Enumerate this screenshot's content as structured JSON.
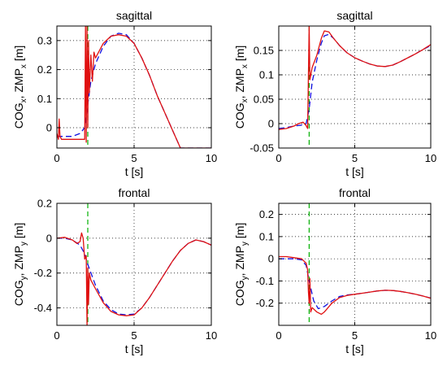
{
  "chart_data": [
    {
      "type": "line",
      "title": "sagittal",
      "xlabel": "t [s]",
      "ylabel": {
        "a": "COG",
        "a_sub": "x",
        "sep": ", ",
        "b": "ZMP",
        "b_sub": "x",
        "unit": " [m]"
      },
      "xlim": [
        0,
        10
      ],
      "ylim": [
        -0.07,
        0.35
      ],
      "xticks": [
        0,
        5,
        10
      ],
      "yticks": [
        0,
        0.1,
        0.2,
        0.3
      ],
      "ytick_labels": [
        "0",
        "0.1",
        "0.2",
        "0.3"
      ],
      "grid": true,
      "vline": {
        "x": 2.0,
        "color": "#00b000"
      },
      "series": [
        {
          "style": "dashed",
          "color": "#1010e0",
          "x": [
            0,
            0.5,
            1.0,
            1.5,
            1.8,
            2.0,
            2.2,
            2.5,
            3.0,
            3.5,
            4.0,
            4.5,
            5.0,
            5.5,
            6.0,
            6.5,
            7.0,
            7.5,
            8.0,
            10
          ],
          "y": [
            -0.03,
            -0.03,
            -0.03,
            -0.02,
            0.0,
            0.08,
            0.16,
            0.22,
            0.28,
            0.315,
            0.325,
            0.32,
            0.29,
            0.24,
            0.18,
            0.11,
            0.05,
            -0.01,
            -0.07,
            -0.07
          ]
        },
        {
          "style": "solid",
          "color": "#e01010",
          "x": [
            0,
            0.1,
            0.15,
            0.2,
            0.3,
            0.5,
            1.0,
            1.5,
            1.8,
            1.85,
            1.9,
            1.95,
            2.0,
            2.05,
            2.1,
            2.2,
            2.3,
            2.4,
            2.5,
            3.0,
            3.5,
            4.0,
            4.5,
            5.0,
            5.5,
            6.0,
            6.5,
            7.0,
            7.5,
            8.0,
            10
          ],
          "y": [
            -0.02,
            -0.04,
            0.03,
            -0.03,
            -0.04,
            -0.04,
            -0.04,
            -0.04,
            -0.04,
            0.35,
            -0.05,
            0.35,
            0.0,
            0.3,
            0.12,
            0.25,
            0.16,
            0.26,
            0.24,
            0.29,
            0.315,
            0.32,
            0.315,
            0.29,
            0.24,
            0.18,
            0.11,
            0.05,
            -0.01,
            -0.07,
            -0.07
          ]
        }
      ]
    },
    {
      "type": "line",
      "title": "sagittal",
      "xlabel": "t [s]",
      "ylabel": {
        "a": "COG",
        "a_sub": "x",
        "sep": ", ",
        "b": "ZMP",
        "b_sub": "x",
        "unit": " [m]"
      },
      "xlim": [
        0,
        10
      ],
      "ylim": [
        -0.05,
        0.2
      ],
      "xticks": [
        0,
        5,
        10
      ],
      "yticks": [
        -0.05,
        0,
        0.05,
        0.1,
        0.15
      ],
      "ytick_labels": [
        "-0.05",
        "0",
        "0.05",
        "0.1",
        "0.15"
      ],
      "grid": true,
      "vline": {
        "x": 2.0,
        "color": "#00b000"
      },
      "series": [
        {
          "style": "dashed",
          "color": "#1010e0",
          "x": [
            0,
            0.5,
            1.0,
            1.5,
            1.8,
            2.0,
            2.2,
            2.5,
            2.8,
            3.0,
            3.3,
            3.6,
            4.0,
            4.5,
            5.0,
            5.5,
            6.0,
            6.5,
            7.0,
            7.5,
            8.0,
            8.5,
            9.0,
            9.5,
            10
          ],
          "y": [
            -0.01,
            -0.008,
            -0.005,
            -0.003,
            0.0,
            0.03,
            0.085,
            0.13,
            0.165,
            0.18,
            0.183,
            0.175,
            0.16,
            0.145,
            0.135,
            0.128,
            0.122,
            0.118,
            0.117,
            0.12,
            0.127,
            0.135,
            0.143,
            0.152,
            0.16
          ]
        },
        {
          "style": "solid",
          "color": "#e01010",
          "x": [
            0,
            0.5,
            1.0,
            1.3,
            1.6,
            1.8,
            1.9,
            2.0,
            2.05,
            2.2,
            2.5,
            2.8,
            3.0,
            3.3,
            3.6,
            4.0,
            4.5,
            5.0,
            5.5,
            6.0,
            6.5,
            7.0,
            7.5,
            8.0,
            8.5,
            9.0,
            9.5,
            10
          ],
          "y": [
            -0.012,
            -0.01,
            -0.005,
            0.0,
            0.003,
            -0.004,
            -0.01,
            0.2,
            0.09,
            0.115,
            0.14,
            0.175,
            0.19,
            0.188,
            0.175,
            0.16,
            0.145,
            0.135,
            0.128,
            0.122,
            0.118,
            0.117,
            0.12,
            0.127,
            0.135,
            0.143,
            0.152,
            0.162
          ]
        }
      ]
    },
    {
      "type": "line",
      "title": "frontal",
      "xlabel": "t [s]",
      "ylabel": {
        "a": "COG",
        "a_sub": "y",
        "sep": ", ",
        "b": "ZMP",
        "b_sub": "y",
        "unit": " [m]"
      },
      "xlim": [
        0,
        10
      ],
      "ylim": [
        -0.5,
        0.2
      ],
      "xticks": [
        0,
        5,
        10
      ],
      "yticks": [
        -0.4,
        -0.2,
        0,
        0.2
      ],
      "ytick_labels": [
        "-0.4",
        "-0.2",
        "0",
        "0.2"
      ],
      "grid": true,
      "vline": {
        "x": 2.0,
        "color": "#00b000"
      },
      "series": [
        {
          "style": "dashed",
          "color": "#1010e0",
          "x": [
            0,
            0.5,
            1.0,
            1.5,
            1.8,
            2.0,
            2.5,
            3.0,
            3.5,
            4.0,
            4.5,
            5.0,
            5.5,
            6.0,
            6.5,
            7.0,
            7.5,
            8.0,
            8.5,
            9.0,
            9.5,
            10
          ],
          "y": [
            0.0,
            0.0,
            -0.01,
            -0.04,
            -0.09,
            -0.15,
            -0.27,
            -0.36,
            -0.41,
            -0.435,
            -0.44,
            -0.435,
            -0.4,
            -0.34,
            -0.27,
            -0.2,
            -0.13,
            -0.07,
            -0.03,
            -0.01,
            -0.02,
            -0.04
          ]
        },
        {
          "style": "solid",
          "color": "#e01010",
          "x": [
            0,
            0.5,
            1.0,
            1.3,
            1.5,
            1.6,
            1.7,
            1.8,
            1.9,
            1.95,
            2.0,
            2.05,
            2.1,
            2.2,
            2.5,
            3.0,
            3.5,
            4.0,
            4.5,
            5.0,
            5.5,
            6.0,
            6.5,
            7.0,
            7.5,
            8.0,
            8.5,
            9.0,
            9.5,
            10
          ],
          "y": [
            0.0,
            0.005,
            -0.01,
            -0.03,
            -0.02,
            0.03,
            0.0,
            -0.12,
            -0.1,
            -0.5,
            -0.17,
            -0.38,
            -0.2,
            -0.24,
            -0.29,
            -0.37,
            -0.42,
            -0.44,
            -0.445,
            -0.44,
            -0.4,
            -0.34,
            -0.27,
            -0.2,
            -0.13,
            -0.07,
            -0.03,
            -0.01,
            -0.02,
            -0.04
          ]
        }
      ]
    },
    {
      "type": "line",
      "title": "frontal",
      "xlabel": "t [s]",
      "ylabel": {
        "a": "COG",
        "a_sub": "y",
        "sep": ", ",
        "b": "ZMP",
        "b_sub": "y",
        "unit": " [m]"
      },
      "xlim": [
        0,
        10
      ],
      "ylim": [
        -0.3,
        0.25
      ],
      "xticks": [
        0,
        5,
        10
      ],
      "yticks": [
        -0.2,
        -0.1,
        0,
        0.1,
        0.2
      ],
      "ytick_labels": [
        "-0.2",
        "-0.1",
        "0",
        "0.1",
        "0.2"
      ],
      "grid": true,
      "vline": {
        "x": 2.0,
        "color": "#00b000"
      },
      "series": [
        {
          "style": "dashed",
          "color": "#1010e0",
          "x": [
            0,
            0.5,
            1.0,
            1.5,
            1.8,
            2.0,
            2.3,
            2.6,
            3.0,
            3.5,
            4.0,
            4.5,
            5.0,
            5.5,
            6.0,
            6.5,
            7.0,
            7.5,
            8.0,
            8.5,
            9.0,
            9.5,
            10
          ],
          "y": [
            0.0,
            0.0,
            0.0,
            -0.005,
            -0.03,
            -0.1,
            -0.19,
            -0.225,
            -0.215,
            -0.19,
            -0.17,
            -0.163,
            -0.16,
            -0.155,
            -0.15,
            -0.145,
            -0.142,
            -0.143,
            -0.147,
            -0.153,
            -0.16,
            -0.168,
            -0.177
          ]
        },
        {
          "style": "solid",
          "color": "#e01010",
          "x": [
            0,
            0.5,
            1.0,
            1.5,
            1.8,
            1.9,
            1.95,
            2.0,
            2.05,
            2.1,
            2.2,
            2.5,
            2.8,
            3.0,
            3.5,
            4.0,
            4.5,
            5.0,
            5.5,
            6.0,
            6.5,
            7.0,
            7.5,
            8.0,
            8.5,
            9.0,
            9.5,
            10
          ],
          "y": [
            0.01,
            0.01,
            0.005,
            0.0,
            -0.02,
            -0.05,
            -0.15,
            -0.2,
            -0.09,
            -0.24,
            -0.22,
            -0.24,
            -0.25,
            -0.24,
            -0.2,
            -0.175,
            -0.165,
            -0.16,
            -0.155,
            -0.15,
            -0.145,
            -0.142,
            -0.143,
            -0.147,
            -0.153,
            -0.16,
            -0.168,
            -0.178
          ]
        }
      ]
    }
  ]
}
